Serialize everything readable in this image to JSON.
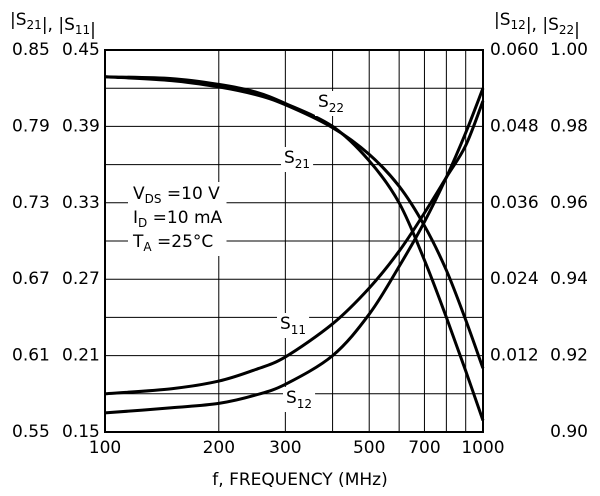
{
  "chart_data": {
    "type": "line",
    "x_scale": "log",
    "xlim": [
      100,
      1000
    ],
    "xlabel": "f, FREQUENCY (MHz)",
    "x_ticks": [
      "100",
      "200",
      "300",
      "500",
      "700",
      "1000"
    ],
    "grid": true,
    "left_axes": {
      "title": "|S21|, |S11|",
      "outer": {
        "series": "S21",
        "ylim": [
          0.55,
          0.85
        ],
        "ticks": [
          "0.55",
          "0.61",
          "0.67",
          "0.73",
          "0.79",
          "0.85"
        ]
      },
      "inner": {
        "series": "S11",
        "ylim": [
          0.15,
          0.45
        ],
        "ticks": [
          "0.15",
          "0.21",
          "0.27",
          "0.33",
          "0.39",
          "0.45"
        ]
      }
    },
    "right_axes": {
      "title": "|S12|, |S22|",
      "inner": {
        "series": "S12",
        "ylim": [
          0.0,
          0.06
        ],
        "ticks": [
          "0.012",
          "0.024",
          "0.036",
          "0.048",
          "0.060"
        ]
      },
      "outer": {
        "series": "S22",
        "ylim": [
          0.9,
          1.0
        ],
        "ticks": [
          "0.90",
          "0.92",
          "0.94",
          "0.96",
          "0.98",
          "1.00"
        ]
      }
    },
    "conditions": [
      {
        "key": "V",
        "sub": "DS",
        "value": " =10 V"
      },
      {
        "key": "I",
        "sub": "D",
        "value": " =10 mA"
      },
      {
        "key": "T",
        "sub": "A",
        "value": " =25°C"
      }
    ],
    "series": [
      {
        "name": "S22",
        "axis": "right-outer",
        "x": [
          100,
          150,
          200,
          250,
          300,
          400,
          500,
          600,
          700,
          800,
          900,
          1000
        ],
        "y": [
          0.993,
          0.9925,
          0.991,
          0.989,
          0.986,
          0.98,
          0.971,
          0.96,
          0.945,
          0.93,
          0.916,
          0.903
        ]
      },
      {
        "name": "S21",
        "axis": "left-outer",
        "x": [
          100,
          150,
          200,
          250,
          300,
          400,
          500,
          600,
          700,
          800,
          900,
          1000
        ],
        "y": [
          0.829,
          0.826,
          0.821,
          0.815,
          0.807,
          0.789,
          0.768,
          0.743,
          0.712,
          0.677,
          0.638,
          0.6
        ]
      },
      {
        "name": "S11",
        "axis": "left-inner",
        "x": [
          100,
          150,
          200,
          250,
          300,
          400,
          500,
          600,
          700,
          800,
          900,
          1000
        ],
        "y": [
          0.18,
          0.184,
          0.19,
          0.199,
          0.209,
          0.235,
          0.263,
          0.292,
          0.322,
          0.35,
          0.375,
          0.41
        ]
      },
      {
        "name": "S12",
        "axis": "right-inner",
        "x": [
          100,
          150,
          200,
          250,
          300,
          400,
          500,
          600,
          700,
          800,
          900,
          1000
        ],
        "y": [
          0.003,
          0.0038,
          0.0045,
          0.0058,
          0.0075,
          0.012,
          0.0185,
          0.026,
          0.033,
          0.04,
          0.047,
          0.054
        ]
      }
    ],
    "labels": [
      {
        "series": "S22",
        "letter": "S",
        "sub": "22"
      },
      {
        "series": "S21",
        "letter": "S",
        "sub": "21"
      },
      {
        "series": "S11",
        "letter": "S",
        "sub": "11"
      },
      {
        "series": "S12",
        "letter": "S",
        "sub": "12"
      }
    ]
  }
}
